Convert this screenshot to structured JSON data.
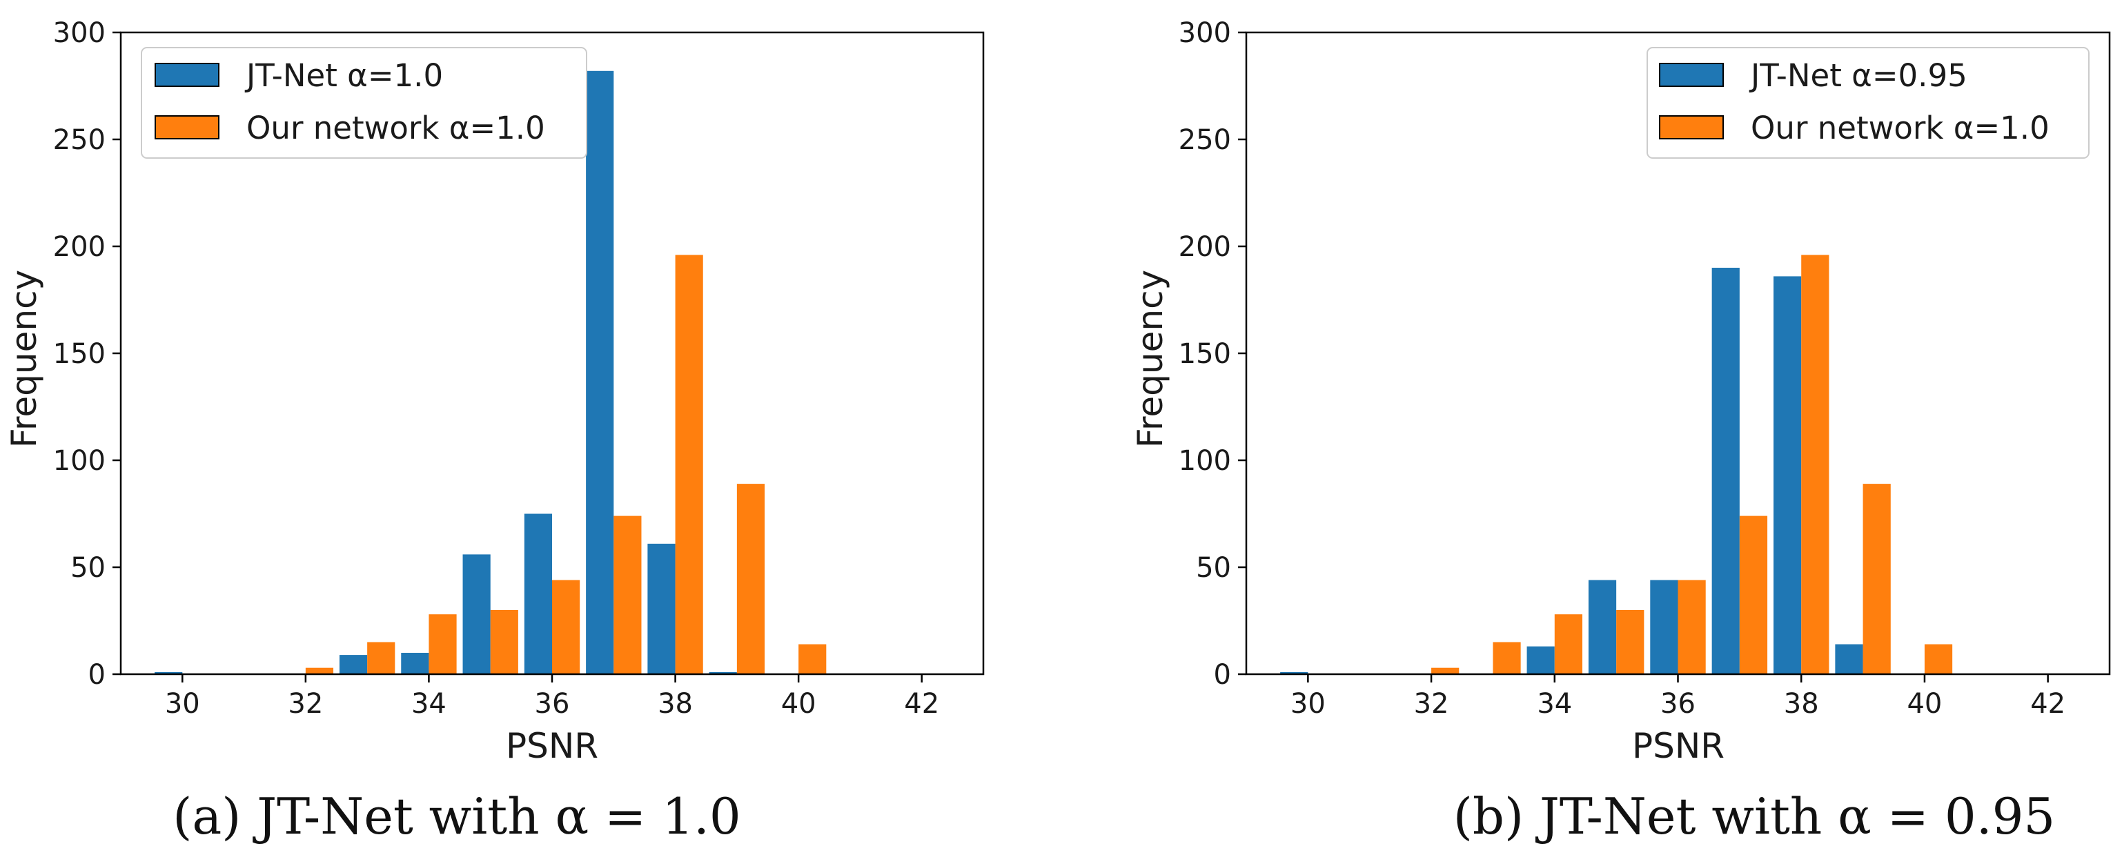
{
  "colors": {
    "series_1": "#1f77b4",
    "series_2": "#ff7f0e",
    "axis": "#000000",
    "text": "#1a1a1a"
  },
  "chart_data": [
    {
      "type": "bar",
      "caption": "(a) JT-Net with α = 1.0",
      "xlabel": "PSNR",
      "ylabel": "Frequency",
      "xlim": [
        29,
        43
      ],
      "ylim": [
        0,
        300
      ],
      "xticks": [
        30,
        32,
        34,
        36,
        38,
        40,
        42
      ],
      "yticks": [
        0,
        50,
        100,
        150,
        200,
        250,
        300
      ],
      "grid": false,
      "legend_position": "top-left",
      "bins": [
        30,
        31,
        32,
        33,
        34,
        35,
        36,
        37,
        38,
        39,
        40,
        41,
        42
      ],
      "series": [
        {
          "name": "JT-Net α=1.0",
          "values": [
            1,
            0,
            0,
            9,
            10,
            56,
            75,
            282,
            61,
            1,
            0,
            0,
            0
          ]
        },
        {
          "name": "Our network α=1.0",
          "values": [
            0,
            0,
            3,
            15,
            28,
            30,
            44,
            74,
            196,
            89,
            14,
            0,
            0
          ]
        }
      ]
    },
    {
      "type": "bar",
      "caption": "(b) JT-Net with α = 0.95",
      "xlabel": "PSNR",
      "ylabel": "Frequency",
      "xlim": [
        29,
        43
      ],
      "ylim": [
        0,
        300
      ],
      "xticks": [
        30,
        32,
        34,
        36,
        38,
        40,
        42
      ],
      "yticks": [
        0,
        50,
        100,
        150,
        200,
        250,
        300
      ],
      "grid": false,
      "legend_position": "top-right",
      "bins": [
        30,
        31,
        32,
        33,
        34,
        35,
        36,
        37,
        38,
        39,
        40,
        41,
        42
      ],
      "series": [
        {
          "name": "JT-Net α=0.95",
          "values": [
            1,
            0,
            0,
            0,
            13,
            44,
            44,
            190,
            186,
            14,
            0,
            0,
            0
          ]
        },
        {
          "name": "Our network α=1.0",
          "values": [
            0,
            0,
            3,
            15,
            28,
            30,
            44,
            74,
            196,
            89,
            14,
            0,
            0
          ]
        }
      ]
    }
  ]
}
